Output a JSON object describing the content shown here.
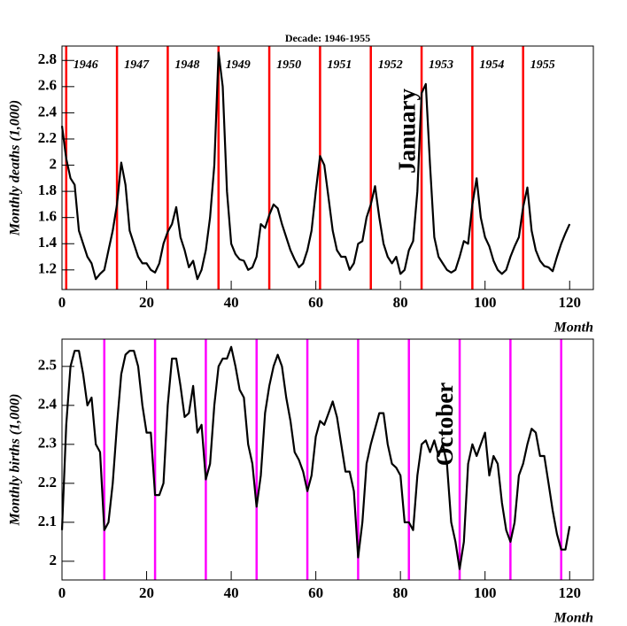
{
  "chart_data": [
    {
      "type": "line",
      "title": "Decade: 1946-1955",
      "xlabel": "Month",
      "ylabel": "Monthly deaths (1,000)",
      "xlim": [
        0,
        125.6
      ],
      "xticks": [
        0,
        20,
        40,
        60,
        80,
        100,
        120
      ],
      "ylim": [
        1.05,
        2.91
      ],
      "yticks": [
        1.2,
        1.4,
        1.6,
        1.8,
        2,
        2.2,
        2.4,
        2.6,
        2.8
      ],
      "color": "#000000",
      "x": [
        0,
        1,
        2,
        3,
        4,
        5,
        6,
        7,
        8,
        9,
        10,
        11,
        12,
        13,
        14,
        15,
        16,
        17,
        18,
        19,
        20,
        21,
        22,
        23,
        24,
        25,
        26,
        27,
        28,
        29,
        30,
        31,
        32,
        33,
        34,
        35,
        36,
        37,
        38,
        39,
        40,
        41,
        42,
        43,
        44,
        45,
        46,
        47,
        48,
        49,
        50,
        51,
        52,
        53,
        54,
        55,
        56,
        57,
        58,
        59,
        60,
        61,
        62,
        63,
        64,
        65,
        66,
        67,
        68,
        69,
        70,
        71,
        72,
        73,
        74,
        75,
        76,
        77,
        78,
        79,
        80,
        81,
        82,
        83,
        84,
        85,
        86,
        87,
        88,
        89,
        90,
        91,
        92,
        93,
        94,
        95,
        96,
        97,
        98,
        99,
        100,
        101,
        102,
        103,
        104,
        105,
        106,
        107,
        108,
        109,
        110,
        111,
        112,
        113,
        114,
        115,
        116,
        117,
        118,
        119,
        120
      ],
      "values": [
        2.3,
        2.05,
        1.9,
        1.85,
        1.5,
        1.4,
        1.3,
        1.25,
        1.13,
        1.17,
        1.2,
        1.35,
        1.5,
        1.7,
        2.02,
        1.85,
        1.5,
        1.4,
        1.3,
        1.25,
        1.25,
        1.2,
        1.18,
        1.25,
        1.4,
        1.49,
        1.55,
        1.68,
        1.45,
        1.35,
        1.22,
        1.27,
        1.13,
        1.2,
        1.35,
        1.6,
        2.0,
        2.86,
        2.6,
        1.8,
        1.4,
        1.32,
        1.28,
        1.27,
        1.2,
        1.22,
        1.3,
        1.55,
        1.52,
        1.62,
        1.7,
        1.67,
        1.55,
        1.45,
        1.35,
        1.28,
        1.22,
        1.25,
        1.35,
        1.5,
        1.8,
        2.07,
        2.0,
        1.75,
        1.5,
        1.35,
        1.3,
        1.3,
        1.2,
        1.25,
        1.4,
        1.42,
        1.6,
        1.7,
        1.84,
        1.6,
        1.4,
        1.3,
        1.25,
        1.3,
        1.17,
        1.2,
        1.35,
        1.42,
        1.8,
        2.55,
        2.62,
        2.0,
        1.45,
        1.3,
        1.25,
        1.2,
        1.18,
        1.2,
        1.3,
        1.42,
        1.4,
        1.7,
        1.9,
        1.6,
        1.45,
        1.38,
        1.27,
        1.2,
        1.17,
        1.2,
        1.3,
        1.38,
        1.45,
        1.68,
        1.83,
        1.5,
        1.35,
        1.27,
        1.23,
        1.22,
        1.19,
        1.3,
        1.4,
        1.48,
        1.55
      ],
      "vlines": [
        1,
        13,
        25,
        37,
        49,
        61,
        73,
        85,
        97,
        109
      ],
      "vline_color": "#ff0000",
      "vline_labels": [
        "1946",
        "1947",
        "1948",
        "1949",
        "1950",
        "1951",
        "1952",
        "1953",
        "1954",
        "1955"
      ],
      "vline_label_color": "#0000cc",
      "annotation": {
        "text": "January",
        "x": 85
      }
    },
    {
      "type": "line",
      "xlabel": "Month",
      "ylabel": "Monthly births (1,000)",
      "xlim": [
        0,
        125.6
      ],
      "xticks": [
        0,
        20,
        40,
        60,
        80,
        100,
        120
      ],
      "ylim": [
        1.952,
        2.57
      ],
      "yticks": [
        2,
        2.1,
        2.2,
        2.3,
        2.4,
        2.5
      ],
      "color": "#000000",
      "x": [
        0,
        1,
        2,
        3,
        4,
        5,
        6,
        7,
        8,
        9,
        10,
        11,
        12,
        13,
        14,
        15,
        16,
        17,
        18,
        19,
        20,
        21,
        22,
        23,
        24,
        25,
        26,
        27,
        28,
        29,
        30,
        31,
        32,
        33,
        34,
        35,
        36,
        37,
        38,
        39,
        40,
        41,
        42,
        43,
        44,
        45,
        46,
        47,
        48,
        49,
        50,
        51,
        52,
        53,
        54,
        55,
        56,
        57,
        58,
        59,
        60,
        61,
        62,
        63,
        64,
        65,
        66,
        67,
        68,
        69,
        70,
        71,
        72,
        73,
        74,
        75,
        76,
        77,
        78,
        79,
        80,
        81,
        82,
        83,
        84,
        85,
        86,
        87,
        88,
        89,
        90,
        91,
        92,
        93,
        94,
        95,
        96,
        97,
        98,
        99,
        100,
        101,
        102,
        103,
        104,
        105,
        106,
        107,
        108,
        109,
        110,
        111,
        112,
        113,
        114,
        115,
        116,
        117,
        118,
        119,
        120
      ],
      "values": [
        2.08,
        2.35,
        2.5,
        2.54,
        2.54,
        2.48,
        2.4,
        2.42,
        2.3,
        2.28,
        2.08,
        2.1,
        2.2,
        2.35,
        2.48,
        2.53,
        2.54,
        2.54,
        2.5,
        2.4,
        2.33,
        2.33,
        2.17,
        2.17,
        2.2,
        2.4,
        2.52,
        2.52,
        2.45,
        2.37,
        2.38,
        2.45,
        2.33,
        2.35,
        2.21,
        2.25,
        2.4,
        2.5,
        2.52,
        2.52,
        2.55,
        2.5,
        2.44,
        2.42,
        2.3,
        2.25,
        2.14,
        2.22,
        2.38,
        2.45,
        2.5,
        2.53,
        2.5,
        2.42,
        2.36,
        2.28,
        2.26,
        2.23,
        2.18,
        2.22,
        2.32,
        2.36,
        2.35,
        2.38,
        2.41,
        2.37,
        2.3,
        2.23,
        2.23,
        2.18,
        2.01,
        2.1,
        2.25,
        2.3,
        2.34,
        2.38,
        2.38,
        2.3,
        2.25,
        2.24,
        2.22,
        2.1,
        2.1,
        2.08,
        2.22,
        2.3,
        2.31,
        2.28,
        2.31,
        2.27,
        2.3,
        2.25,
        2.1,
        2.05,
        1.98,
        2.05,
        2.25,
        2.3,
        2.27,
        2.3,
        2.33,
        2.22,
        2.27,
        2.25,
        2.15,
        2.08,
        2.05,
        2.1,
        2.22,
        2.25,
        2.3,
        2.34,
        2.33,
        2.27,
        2.27,
        2.2,
        2.13,
        2.07,
        2.03,
        2.03,
        2.09
      ],
      "vlines": [
        10,
        22,
        34,
        46,
        58,
        70,
        82,
        94,
        106,
        118
      ],
      "vline_color": "#ff00ff",
      "annotation": {
        "text": "October",
        "x": 94
      }
    }
  ]
}
